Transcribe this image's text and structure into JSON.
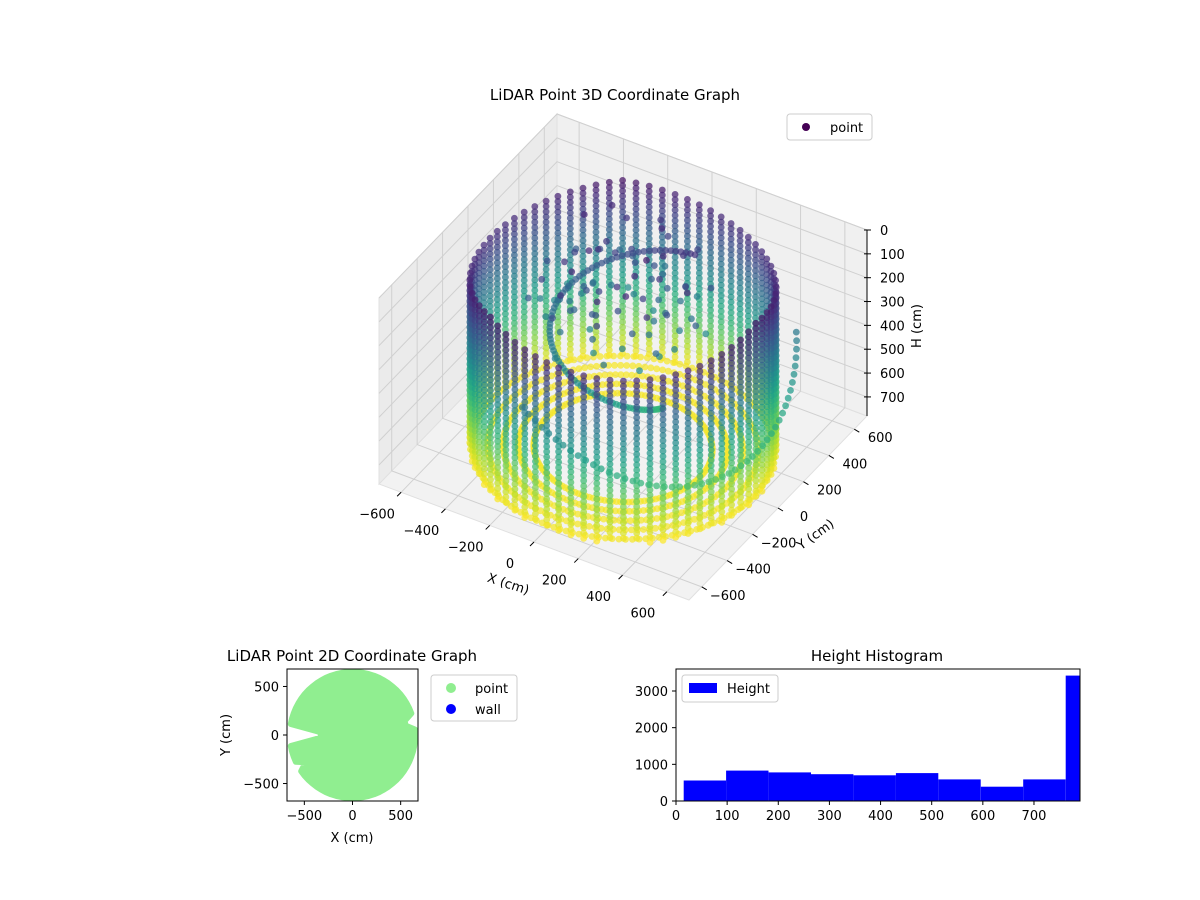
{
  "figure": {
    "background": "#ffffff"
  },
  "chart_data": [
    {
      "type": "scatter",
      "projection": "3d",
      "title": "LiDAR Point 3D Coordinate Graph",
      "xlabel": "X (cm)",
      "ylabel": "Y (cm)",
      "zlabel": "H (cm)",
      "xlim": [
        -700,
        700
      ],
      "ylim": [
        -700,
        700
      ],
      "zlim": [
        0,
        780
      ],
      "z_inverted": true,
      "xticks": [
        "−600",
        "−400",
        "−200",
        "0",
        "200",
        "400",
        "600"
      ],
      "yticks": [
        "−600",
        "−400",
        "−200",
        "0",
        "200",
        "400",
        "600"
      ],
      "zticks": [
        "0",
        "100",
        "200",
        "300",
        "400",
        "500",
        "600",
        "700"
      ],
      "colormap": "viridis",
      "legend": {
        "position": "top-right",
        "entries": [
          {
            "label": "point",
            "color": "#440154"
          }
        ]
      },
      "grid": true,
      "series": [
        {
          "name": "point",
          "description_shape": "cylindrical wall of points, radius ~600 cm, height 0–780 cm, plus inner spiral and arcs"
        }
      ]
    },
    {
      "type": "scatter",
      "title": "LiDAR Point 2D Coordinate Graph",
      "xlabel": "X (cm)",
      "ylabel": "Y (cm)",
      "xlim": [
        -680,
        680
      ],
      "ylim": [
        -680,
        680
      ],
      "xticks": [
        -500,
        0,
        500
      ],
      "yticks": [
        -500,
        0,
        500
      ],
      "legend": {
        "position": "outside-right",
        "entries": [
          {
            "label": "point",
            "color": "#90ee90"
          },
          {
            "label": "wall",
            "color": "#0000ff"
          }
        ]
      },
      "series": [
        {
          "name": "point",
          "color": "#90ee90",
          "region": "filled disc radius ~650 cm with notches at left (y≈-10 and y≈-300) and right (y≈120)"
        }
      ]
    },
    {
      "type": "bar",
      "subtype": "histogram",
      "title": "Height Histogram",
      "xlabel": "",
      "ylabel": "",
      "xlim": [
        0,
        790
      ],
      "ylim": [
        0,
        3600
      ],
      "xticks": [
        0,
        100,
        200,
        300,
        400,
        500,
        600,
        700
      ],
      "yticks": [
        0,
        1000,
        2000,
        3000
      ],
      "legend": {
        "position": "top-left",
        "entries": [
          {
            "label": "Height",
            "color": "#0000ff"
          }
        ]
      },
      "bar_color": "#0000ff",
      "bin_edges": [
        15,
        98,
        181,
        264,
        347,
        430,
        513,
        596,
        679,
        762,
        790
      ],
      "values": [
        560,
        830,
        780,
        730,
        700,
        760,
        590,
        390,
        590,
        3420
      ]
    }
  ]
}
